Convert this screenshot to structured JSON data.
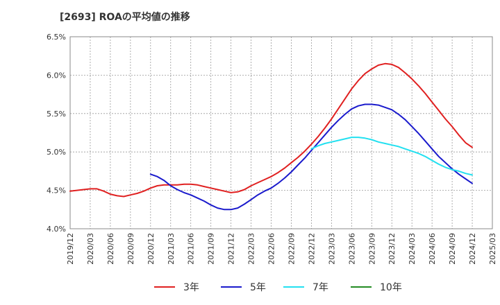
{
  "chart_data": {
    "type": "line",
    "title": "[2693]  ROAの平均値の推移",
    "xlabel": "",
    "ylabel": "",
    "ylim": [
      4.0,
      6.5
    ],
    "y_ticks": [
      "4.0%",
      "4.5%",
      "5.0%",
      "5.5%",
      "6.0%",
      "6.5%"
    ],
    "x_tick_labels": [
      "2019/12",
      "2020/03",
      "2020/06",
      "2020/09",
      "2020/12",
      "2021/03",
      "2021/06",
      "2021/09",
      "2021/12",
      "2022/03",
      "2022/06",
      "2022/09",
      "2022/12",
      "2023/03",
      "2023/06",
      "2023/09",
      "2023/12",
      "2024/03",
      "2024/06",
      "2024/09",
      "2024/12",
      "2025/03"
    ],
    "grid": true,
    "legend_position": "bottom",
    "series": [
      {
        "name": "3年",
        "color": "#e02020",
        "x": [
          "2019/12",
          "2020/01",
          "2020/02",
          "2020/03",
          "2020/04",
          "2020/05",
          "2020/06",
          "2020/07",
          "2020/08",
          "2020/09",
          "2020/10",
          "2020/11",
          "2020/12",
          "2021/01",
          "2021/02",
          "2021/03",
          "2021/04",
          "2021/05",
          "2021/06",
          "2021/07",
          "2021/08",
          "2021/09",
          "2021/10",
          "2021/11",
          "2021/12",
          "2022/01",
          "2022/02",
          "2022/03",
          "2022/04",
          "2022/05",
          "2022/06",
          "2022/07",
          "2022/08",
          "2022/09",
          "2022/10",
          "2022/11",
          "2022/12",
          "2023/01",
          "2023/02",
          "2023/03",
          "2023/04",
          "2023/05",
          "2023/06",
          "2023/07",
          "2023/08",
          "2023/09",
          "2023/10",
          "2023/11",
          "2023/12",
          "2024/01",
          "2024/02",
          "2024/03",
          "2024/04",
          "2024/05",
          "2024/06",
          "2024/07",
          "2024/08",
          "2024/09",
          "2024/10",
          "2024/11",
          "2024/12"
        ],
        "values": [
          4.49,
          4.5,
          4.51,
          4.52,
          4.52,
          4.49,
          4.45,
          4.43,
          4.42,
          4.44,
          4.46,
          4.49,
          4.53,
          4.56,
          4.57,
          4.57,
          4.57,
          4.58,
          4.58,
          4.57,
          4.55,
          4.53,
          4.51,
          4.49,
          4.47,
          4.48,
          4.51,
          4.56,
          4.6,
          4.64,
          4.68,
          4.73,
          4.79,
          4.86,
          4.93,
          5.01,
          5.1,
          5.2,
          5.31,
          5.43,
          5.56,
          5.69,
          5.82,
          5.93,
          6.02,
          6.08,
          6.13,
          6.15,
          6.14,
          6.1,
          6.03,
          5.95,
          5.86,
          5.76,
          5.65,
          5.54,
          5.43,
          5.33,
          5.22,
          5.12,
          5.06
        ]
      },
      {
        "name": "5年",
        "color": "#1a1acc",
        "x": [
          "2020/12",
          "2021/01",
          "2021/02",
          "2021/03",
          "2021/04",
          "2021/05",
          "2021/06",
          "2021/07",
          "2021/08",
          "2021/09",
          "2021/10",
          "2021/11",
          "2021/12",
          "2022/01",
          "2022/02",
          "2022/03",
          "2022/04",
          "2022/05",
          "2022/06",
          "2022/07",
          "2022/08",
          "2022/09",
          "2022/10",
          "2022/11",
          "2022/12",
          "2023/01",
          "2023/02",
          "2023/03",
          "2023/04",
          "2023/05",
          "2023/06",
          "2023/07",
          "2023/08",
          "2023/09",
          "2023/10",
          "2023/11",
          "2023/12",
          "2024/01",
          "2024/02",
          "2024/03",
          "2024/04",
          "2024/05",
          "2024/06",
          "2024/07",
          "2024/08",
          "2024/09",
          "2024/10",
          "2024/11",
          "2024/12"
        ],
        "values": [
          4.71,
          4.68,
          4.63,
          4.56,
          4.51,
          4.47,
          4.44,
          4.4,
          4.36,
          4.31,
          4.27,
          4.25,
          4.25,
          4.27,
          4.32,
          4.38,
          4.44,
          4.49,
          4.53,
          4.59,
          4.66,
          4.74,
          4.83,
          4.92,
          5.02,
          5.12,
          5.22,
          5.32,
          5.41,
          5.49,
          5.56,
          5.6,
          5.62,
          5.62,
          5.61,
          5.58,
          5.55,
          5.49,
          5.42,
          5.33,
          5.24,
          5.14,
          5.04,
          4.94,
          4.86,
          4.78,
          4.71,
          4.65,
          4.59
        ]
      },
      {
        "name": "7年",
        "color": "#22e0f0",
        "x": [
          "2022/12",
          "2023/01",
          "2023/02",
          "2023/03",
          "2023/04",
          "2023/05",
          "2023/06",
          "2023/07",
          "2023/08",
          "2023/09",
          "2023/10",
          "2023/11",
          "2023/12",
          "2024/01",
          "2024/02",
          "2024/03",
          "2024/04",
          "2024/05",
          "2024/06",
          "2024/07",
          "2024/08",
          "2024/09",
          "2024/10",
          "2024/11",
          "2024/12"
        ],
        "values": [
          5.04,
          5.08,
          5.11,
          5.13,
          5.15,
          5.17,
          5.19,
          5.19,
          5.18,
          5.16,
          5.13,
          5.11,
          5.09,
          5.07,
          5.04,
          5.01,
          4.98,
          4.94,
          4.89,
          4.84,
          4.8,
          4.77,
          4.75,
          4.72,
          4.7
        ]
      },
      {
        "name": "10年",
        "color": "#228b22",
        "x": [],
        "values": []
      }
    ]
  }
}
